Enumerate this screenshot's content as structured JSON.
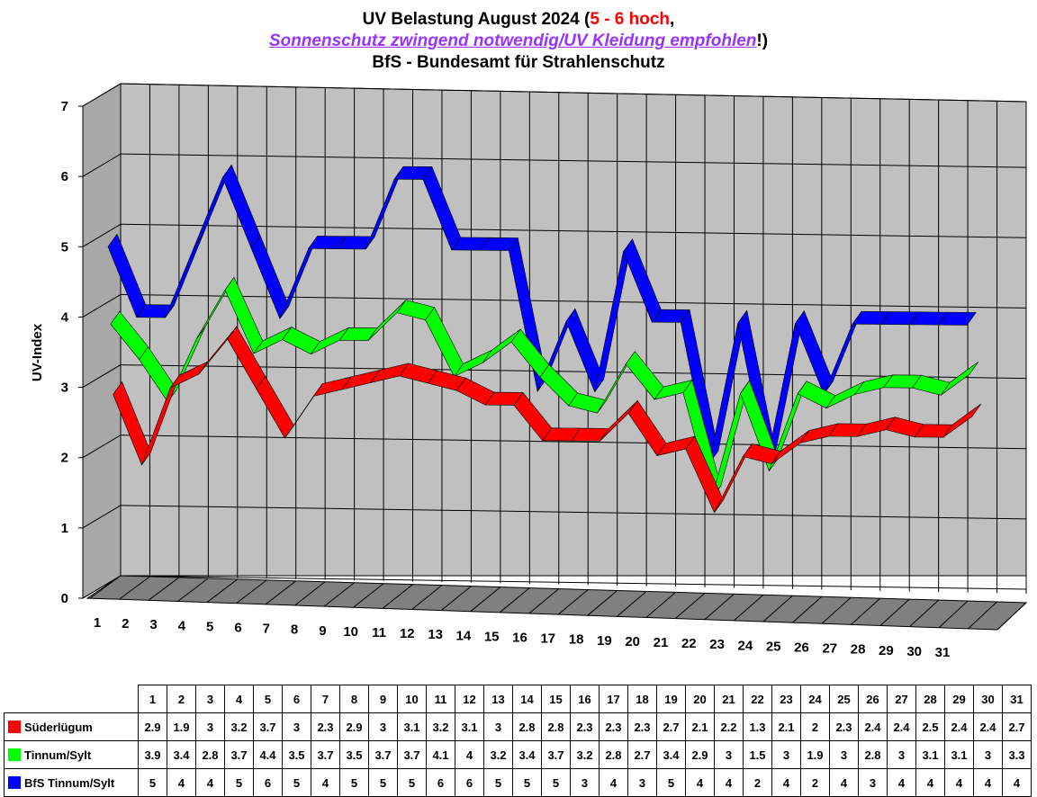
{
  "title": {
    "line1_prefix": "UV Belastung August 2024 (",
    "line1_highlight": "5 - 6 hoch",
    "line1_suffix": ",",
    "line2_link": "Sonnenschutz zwingend notwendig/UV Kleidung empfohlen",
    "line2_suffix": "!)",
    "line3": "BfS - Bundesamt für Strahlenschutz"
  },
  "colors": {
    "red": "#ff0000",
    "green": "#00ff00",
    "blue": "#0000ff",
    "back_wall": "#c0c0c0",
    "floor": "#808080",
    "highlight_red": "#ff0000",
    "link_purple": "#9933ff"
  },
  "chart_data": {
    "type": "line",
    "style": "3d-ribbon",
    "ylabel": "UV-Index",
    "xlabel": "",
    "ylim": [
      0,
      7
    ],
    "yticks": [
      "0",
      "1",
      "2",
      "3",
      "4",
      "5",
      "6",
      "7"
    ],
    "categories": [
      "1",
      "2",
      "3",
      "4",
      "5",
      "6",
      "7",
      "8",
      "9",
      "10",
      "11",
      "12",
      "13",
      "14",
      "15",
      "16",
      "17",
      "18",
      "19",
      "20",
      "21",
      "22",
      "23",
      "24",
      "25",
      "26",
      "27",
      "28",
      "29",
      "30",
      "31"
    ],
    "grid": true,
    "series": [
      {
        "name": "Süderlügum",
        "color": "#ff0000",
        "values": [
          2.9,
          1.9,
          3,
          3.2,
          3.7,
          3,
          2.3,
          2.9,
          3,
          3.1,
          3.2,
          3.1,
          3,
          2.8,
          2.8,
          2.3,
          2.3,
          2.3,
          2.7,
          2.1,
          2.2,
          1.3,
          2.1,
          2,
          2.3,
          2.4,
          2.4,
          2.5,
          2.4,
          2.4,
          2.7
        ]
      },
      {
        "name": "Tinnum/Sylt",
        "color": "#00ff00",
        "values": [
          3.9,
          3.4,
          2.8,
          3.7,
          4.4,
          3.5,
          3.7,
          3.5,
          3.7,
          3.7,
          4.1,
          4,
          3.2,
          3.4,
          3.7,
          3.2,
          2.8,
          2.7,
          3.4,
          2.9,
          3,
          1.5,
          3,
          1.9,
          3,
          2.8,
          3,
          3.1,
          3.1,
          3,
          3.3
        ]
      },
      {
        "name": "BfS Tinnum/Sylt",
        "color": "#0000ff",
        "values": [
          5,
          4,
          4,
          5,
          6,
          5,
          4,
          5,
          5,
          5,
          6,
          6,
          5,
          5,
          5,
          3,
          4,
          3,
          5,
          4,
          4,
          2,
          4,
          2,
          4,
          3,
          4,
          4,
          4,
          4,
          4
        ]
      }
    ]
  }
}
